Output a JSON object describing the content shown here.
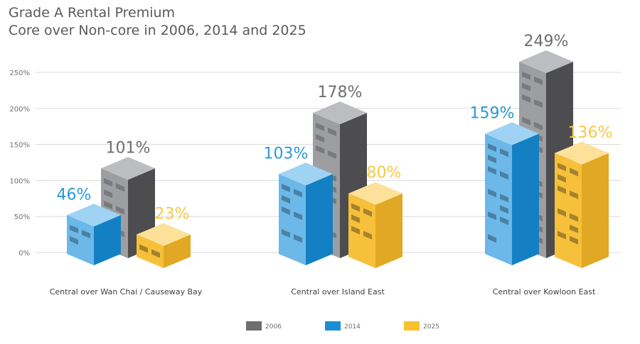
{
  "header": {
    "title": "Grade A Rental Premium",
    "subtitle": "Core over Non-core in 2006, 2014 and 2025"
  },
  "chart_data": {
    "type": "bar",
    "title": "Grade A Rental Premium",
    "subtitle": "Core over Non-core in 2006, 2014 and 2025",
    "xlabel": "",
    "ylabel": "",
    "ylim": [
      0,
      250
    ],
    "yticks": [
      0,
      50,
      100,
      150,
      200,
      250
    ],
    "ytick_labels": [
      "0%",
      "50%",
      "100%",
      "150%",
      "200%",
      "250%"
    ],
    "grid": true,
    "legend_position": "bottom-center",
    "categories": [
      "Central over Wan Chai / Causeway Bay",
      "Central over Island East",
      "Central over Kowloon East"
    ],
    "series": [
      {
        "name": "2006",
        "values": [
          101,
          178,
          249
        ],
        "labels": [
          "101%",
          "178%",
          "249%"
        ],
        "color": "#6d6e71"
      },
      {
        "name": "2014",
        "values": [
          46,
          103,
          159
        ],
        "labels": [
          "46%",
          "103%",
          "159%"
        ],
        "color": "#1b8fd2"
      },
      {
        "name": "2025",
        "values": [
          23,
          80,
          136
        ],
        "labels": [
          "23%",
          "80%",
          "136%"
        ],
        "color": "#fbc02d"
      }
    ],
    "label_colors": {
      "2006": "#6d6e71",
      "2014": "#2b9ad6",
      "2025": "#f7c948"
    }
  }
}
